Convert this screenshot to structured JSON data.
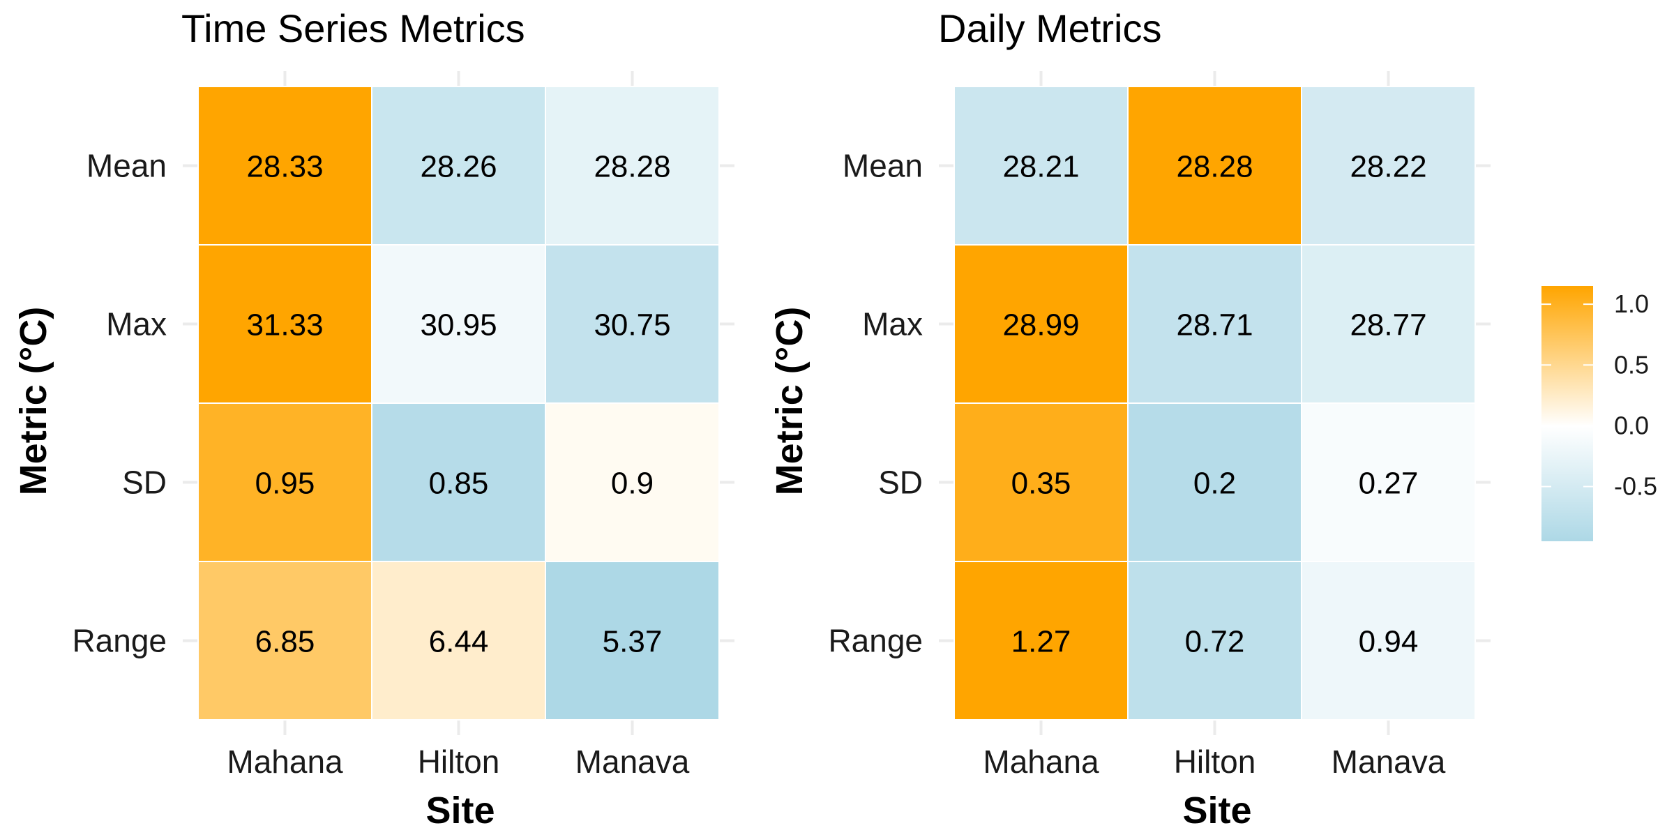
{
  "chart_data": [
    {
      "type": "heatmap",
      "title": "Time Series Metrics",
      "xlabel": "Site",
      "ylabel": "Metric (°C)",
      "x_categories": [
        "Mahana",
        "Hilton",
        "Manava"
      ],
      "y_categories": [
        "Mean",
        "Max",
        "SD",
        "Range"
      ],
      "values": [
        [
          28.33,
          28.26,
          28.28
        ],
        [
          31.33,
          30.95,
          30.75
        ],
        [
          0.95,
          0.85,
          0.9
        ],
        [
          6.85,
          6.44,
          5.37
        ]
      ],
      "labels": [
        [
          "28.33",
          "28.26",
          "28.28"
        ],
        [
          "31.33",
          "30.95",
          "30.75"
        ],
        [
          "0.95",
          "0.85",
          "0.9"
        ],
        [
          "6.85",
          "6.44",
          "5.37"
        ]
      ],
      "fill_scale_values": [
        [
          1.15,
          -0.62,
          -0.3
        ],
        [
          1.15,
          -0.15,
          -0.7
        ],
        [
          0.85,
          -0.85,
          0.05
        ],
        [
          0.6,
          0.2,
          -0.95
        ]
      ]
    },
    {
      "type": "heatmap",
      "title": "Daily Metrics",
      "xlabel": "Site",
      "ylabel": "Metric (°C)",
      "x_categories": [
        "Mahana",
        "Hilton",
        "Manava"
      ],
      "y_categories": [
        "Mean",
        "Max",
        "SD",
        "Range"
      ],
      "values": [
        [
          28.21,
          28.28,
          28.22
        ],
        [
          28.99,
          28.71,
          28.77
        ],
        [
          0.35,
          0.2,
          0.27
        ],
        [
          1.27,
          0.72,
          0.94
        ]
      ],
      "labels": [
        [
          "28.21",
          "28.28",
          "28.22"
        ],
        [
          "28.99",
          "28.71",
          "28.77"
        ],
        [
          "0.35",
          "0.2",
          "0.27"
        ],
        [
          "1.27",
          "0.72",
          "0.94"
        ]
      ],
      "fill_scale_values": [
        [
          -0.6,
          1.15,
          -0.5
        ],
        [
          1.15,
          -0.7,
          -0.4
        ],
        [
          0.9,
          -0.85,
          -0.08
        ],
        [
          1.05,
          -0.75,
          -0.2
        ]
      ]
    }
  ],
  "legend": {
    "position": "right",
    "ticks": [
      "1.0",
      "0.5",
      "0.0",
      "-0.5"
    ],
    "tick_values": [
      1.0,
      0.5,
      0.0,
      -0.5
    ],
    "range": [
      -0.95,
      1.15
    ],
    "colors": {
      "high": "#FFA500",
      "mid": "#FFFFFF",
      "low": "#ADD8E6"
    }
  },
  "grid": true
}
